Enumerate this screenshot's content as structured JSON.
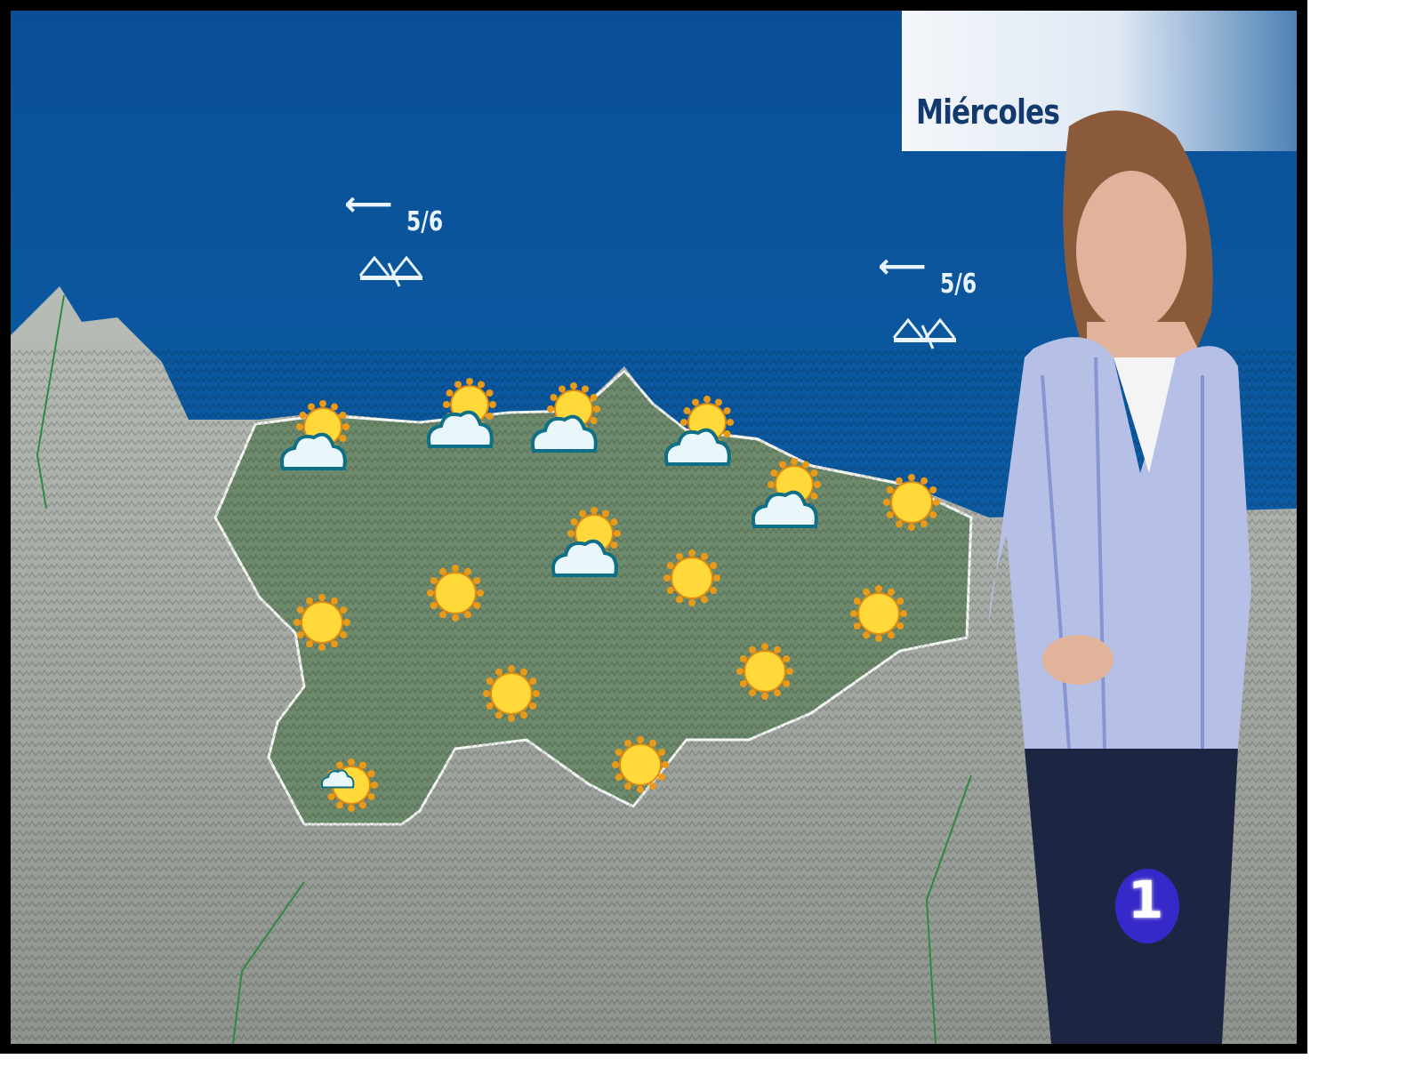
{
  "broadcast": {
    "day_label": "Miércoles",
    "channel_logo": "1",
    "colors": {
      "sea": "#0b5aa0",
      "land": "#9aa39a",
      "region": "#6f8a6c",
      "day_box_text": "#123a6e"
    }
  },
  "wind": [
    {
      "direction": "west",
      "icon": "arrow-left-icon",
      "value": "5/6",
      "sea_state_icon": "waves-icon"
    },
    {
      "direction": "west",
      "icon": "arrow-left-icon",
      "value": "5/6",
      "sea_state_icon": "waves-icon"
    }
  ],
  "forecast_icons": [
    {
      "type": "partly-cloudy"
    },
    {
      "type": "partly-cloudy"
    },
    {
      "type": "partly-cloudy"
    },
    {
      "type": "partly-cloudy"
    },
    {
      "type": "partly-cloudy"
    },
    {
      "type": "partly-cloudy"
    },
    {
      "type": "sunny"
    },
    {
      "type": "sunny"
    },
    {
      "type": "sunny"
    },
    {
      "type": "sunny"
    },
    {
      "type": "sunny"
    },
    {
      "type": "sunny"
    },
    {
      "type": "sunny"
    },
    {
      "type": "sunny"
    },
    {
      "type": "partly-cloudy-small"
    }
  ]
}
